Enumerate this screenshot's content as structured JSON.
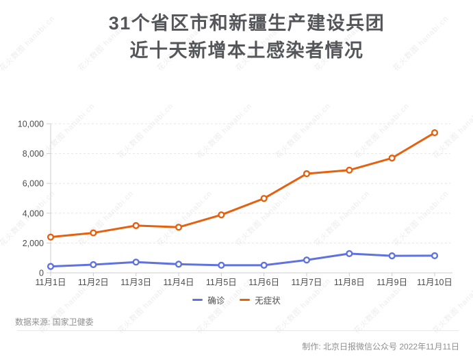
{
  "title": {
    "line1": "31个省区市和新疆生产建设兵团",
    "line2": "近十天新增本土感染者情况"
  },
  "watermark": {
    "text": "花火数图 hanabi.cn"
  },
  "source_note": "数据来源: 国家卫健委",
  "credit_note": "制作: 北京日报微信公众号 2022年11月11日",
  "colors": {
    "confirmed": "#5F72DF",
    "asymptomatic": "#E5610F",
    "title": "#55565A",
    "axis_label": "#4B4B4D",
    "axis_line": "#CCCCCC",
    "grid_line": "#E6E6E6",
    "note_text": "#8F8F8F"
  },
  "chart_data": {
    "type": "line",
    "title": "近十天新增本土感染者情况",
    "categories": [
      "11月1日",
      "11月2日",
      "11月3日",
      "11月4日",
      "11月5日",
      "11月6日",
      "11月7日",
      "11月8日",
      "11月9日",
      "11月10日"
    ],
    "series": [
      {
        "name": "确诊",
        "color": "#5F72DF",
        "values": [
          430,
          550,
          720,
          580,
          510,
          510,
          860,
          1290,
          1140,
          1150
        ]
      },
      {
        "name": "无症状",
        "color": "#E5610F",
        "values": [
          2400,
          2680,
          3170,
          3060,
          3890,
          4990,
          6650,
          6890,
          7700,
          9400
        ]
      }
    ],
    "xlabel": "",
    "ylabel": "",
    "ylim": [
      0,
      10000
    ],
    "y_ticks": [
      0,
      2000,
      4000,
      6000,
      8000,
      10000
    ],
    "y_tick_labels": [
      "0",
      "2,000",
      "4,000",
      "6,000",
      "8,000",
      "10,000"
    ],
    "grid": "horizontal-dashed",
    "legend_position": "bottom",
    "marker": "open-circle"
  }
}
